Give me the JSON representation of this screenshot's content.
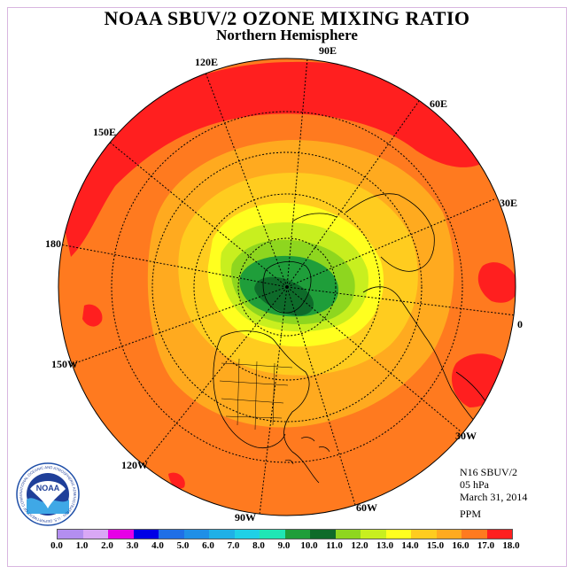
{
  "title": "NOAA SBUV/2 OZONE MIXING RATIO",
  "subtitle": "Northern Hemisphere",
  "longitude_labels": [
    "90E",
    "60E",
    "30E",
    "0",
    "30W",
    "60W",
    "90W",
    "120W",
    "150W",
    "180",
    "150E",
    "120E"
  ],
  "info": {
    "satellite": "N16 SBUV/2",
    "level": "05 hPa",
    "date": "March 31, 2014",
    "units": "PPM"
  },
  "logo": {
    "center_text": "NOAA",
    "ring_text": "NATIONAL OCEANIC AND ATMOSPHERIC ADMINISTRATION · U.S. DEPARTMENT OF COMMERCE"
  },
  "colorbar": {
    "ticks": [
      "0.0",
      "1.0",
      "2.0",
      "3.0",
      "4.0",
      "5.0",
      "6.0",
      "7.0",
      "8.0",
      "9.0",
      "10.0",
      "11.0",
      "12.0",
      "13.0",
      "14.0",
      "15.0",
      "16.0",
      "17.0",
      "18.0"
    ],
    "colors": [
      "#b38ef0",
      "#d9a8f5",
      "#e600e6",
      "#0000e6",
      "#1f6fe6",
      "#1f8fe6",
      "#1fb0e6",
      "#1fd0e6",
      "#1fe6b5",
      "#1f9e3a",
      "#0e6b2a",
      "#8ed61f",
      "#c8ef1f",
      "#ffff1f",
      "#ffcc1f",
      "#ffaa1f",
      "#ff7a1f",
      "#ff1f1f",
      "#8a5a3a"
    ]
  },
  "colors": {
    "polar_core": "#0e6b2a",
    "inner_green": "#1f9e3a",
    "light_green": "#8ed61f",
    "yellow_green": "#c8ef1f",
    "yellow": "#ffff1f",
    "gold": "#ffcc1f",
    "light_orange": "#ffaa1f",
    "orange": "#ff7a1f",
    "red": "#ff1f1f",
    "frame": "#d9b6e0"
  }
}
